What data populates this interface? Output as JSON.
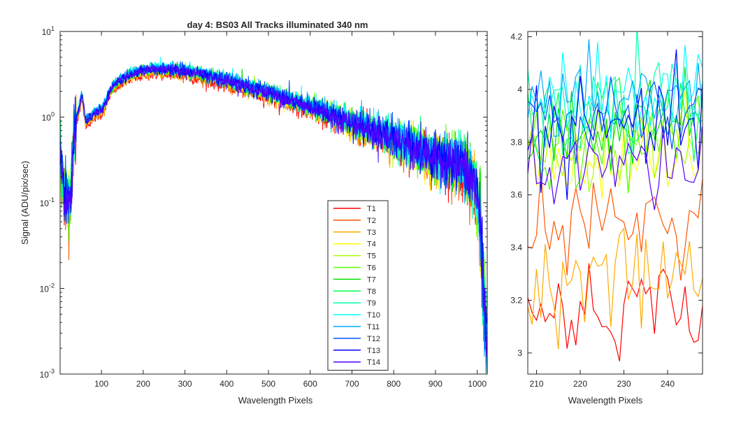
{
  "chart_data": [
    {
      "id": "main",
      "type": "line",
      "title": "day 4: BS03   All Tracks illuminated   340 nm",
      "xlabel": "Wavelength Pixels",
      "ylabel": "Signal (ADU/pix/sec)",
      "xlim": [
        1,
        1024
      ],
      "ylim": [
        0.001,
        10
      ],
      "yscale": "log",
      "xticks": [
        100,
        200,
        300,
        400,
        500,
        600,
        700,
        800,
        900,
        1000
      ],
      "yticks": [
        {
          "value": 0.001,
          "base": "10",
          "exp": "-3"
        },
        {
          "value": 0.01,
          "base": "10",
          "exp": "-2"
        },
        {
          "value": 0.1,
          "base": "10",
          "exp": "-1"
        },
        {
          "value": 1,
          "base": "10",
          "exp": "0"
        },
        {
          "value": 10,
          "base": "10",
          "exp": "1"
        }
      ],
      "grid": false,
      "legend": "lower-right",
      "profile": {
        "x": [
          1,
          3,
          6,
          10,
          15,
          20,
          25,
          28,
          33,
          40,
          48,
          52,
          55,
          58,
          62,
          66,
          70,
          80,
          90,
          100,
          110,
          120,
          130,
          150,
          170,
          200,
          220,
          240,
          260,
          280,
          300,
          350,
          400,
          450,
          500,
          550,
          600,
          650,
          700,
          750,
          800,
          850,
          900,
          930,
          950,
          970,
          980,
          990,
          1000,
          1008,
          1014,
          1018,
          1022,
          1024
        ],
        "y": [
          0.55,
          0.3,
          0.2,
          0.13,
          0.12,
          0.1,
          0.09,
          0.16,
          0.5,
          0.95,
          1.35,
          1.75,
          1.6,
          1.25,
          0.9,
          0.9,
          0.95,
          1.05,
          1.15,
          1.2,
          1.45,
          2.0,
          2.3,
          2.75,
          3.1,
          3.45,
          3.55,
          3.6,
          3.55,
          3.5,
          3.4,
          3.05,
          2.65,
          2.25,
          1.9,
          1.6,
          1.32,
          1.05,
          0.85,
          0.68,
          0.55,
          0.44,
          0.33,
          0.3,
          0.28,
          0.25,
          0.2,
          0.17,
          0.12,
          0.06,
          0.01,
          0.005,
          0.003,
          0.003
        ]
      },
      "series": [
        {
          "name": "T1",
          "color": "#FF0000",
          "scale": 0.88
        },
        {
          "name": "T2",
          "color": "#FF5500",
          "scale": 0.915
        },
        {
          "name": "T3",
          "color": "#FFAA00",
          "scale": 0.93
        },
        {
          "name": "T4",
          "color": "#FFFF00",
          "scale": 0.98
        },
        {
          "name": "T5",
          "color": "#AAFF00",
          "scale": 1.0
        },
        {
          "name": "T6",
          "color": "#55FF00",
          "scale": 1.01
        },
        {
          "name": "T7",
          "color": "#00E000",
          "scale": 1.02
        },
        {
          "name": "T8",
          "color": "#00FF55",
          "scale": 1.04
        },
        {
          "name": "T9",
          "color": "#00FFAA",
          "scale": 1.05
        },
        {
          "name": "T10",
          "color": "#00FFFF",
          "scale": 1.07
        },
        {
          "name": "T11",
          "color": "#00AAFF",
          "scale": 1.06
        },
        {
          "name": "T12",
          "color": "#0055FF",
          "scale": 1.04
        },
        {
          "name": "T13",
          "color": "#0000FF",
          "scale": 1.01
        },
        {
          "name": "T14",
          "color": "#5500FF",
          "scale": 0.99
        }
      ]
    },
    {
      "id": "zoom",
      "type": "line",
      "xlabel": "Wavelength Pixels",
      "xlim": [
        208,
        248
      ],
      "ylim": [
        2.92,
        4.22
      ],
      "yscale": "linear",
      "xticks": [
        210,
        220,
        230,
        240
      ],
      "yticks": [
        3,
        3.2,
        3.4,
        3.6,
        3.8,
        4,
        4.2
      ],
      "grid": false,
      "series_levels": [
        {
          "name": "T1",
          "mean": 3.14
        },
        {
          "name": "T2",
          "mean": 3.46
        },
        {
          "name": "T3",
          "mean": 3.26
        },
        {
          "name": "T4",
          "mean": 3.71
        },
        {
          "name": "T5",
          "mean": 3.75
        },
        {
          "name": "T6",
          "mean": 3.78
        },
        {
          "name": "T7",
          "mean": 3.82
        },
        {
          "name": "T8",
          "mean": 3.86
        },
        {
          "name": "T9",
          "mean": 3.9
        },
        {
          "name": "T10",
          "mean": 3.96
        },
        {
          "name": "T11",
          "mean": 3.93
        },
        {
          "name": "T12",
          "mean": 3.87
        },
        {
          "name": "T13",
          "mean": 3.82
        },
        {
          "name": "T14",
          "mean": 3.67
        }
      ]
    }
  ]
}
